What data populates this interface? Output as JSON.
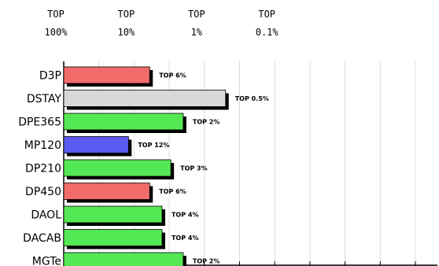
{
  "chart_data": {
    "type": "bar",
    "orientation": "horizontal",
    "scale": "log",
    "axis_ticks": [
      {
        "top": "TOP",
        "bottom": "100%",
        "value": 100
      },
      {
        "top": "TOP",
        "bottom": "10%",
        "value": 10
      },
      {
        "top": "TOP",
        "bottom": "1%",
        "value": 1
      },
      {
        "top": "TOP",
        "bottom": "0.1%",
        "value": 0.1
      }
    ],
    "categories": [
      "D3P",
      "DSTAY",
      "DPE365",
      "MP120",
      "DP210",
      "DP450",
      "DAOL",
      "DACAB",
      "MGTe"
    ],
    "values": [
      6,
      0.5,
      2,
      12,
      3,
      6,
      4,
      4,
      2
    ],
    "data_labels": [
      "TOP 6%",
      "TOP 0.5%",
      "TOP 2%",
      "TOP 12%",
      "TOP 3%",
      "TOP 6%",
      "TOP 4%",
      "TOP 4%",
      "TOP 2%"
    ],
    "bar_colors": [
      "#f26b6b",
      "#d8d8d8",
      "#55e855",
      "#5a5af0",
      "#55e855",
      "#f26b6b",
      "#55e855",
      "#55e855",
      "#55e855"
    ],
    "grid": "vertical",
    "colors": {
      "red": "#f26b6b",
      "gray": "#d8d8d8",
      "green": "#55e855",
      "blue": "#5a5af0",
      "shadow": "#000000",
      "grid": "#dddddd"
    }
  }
}
